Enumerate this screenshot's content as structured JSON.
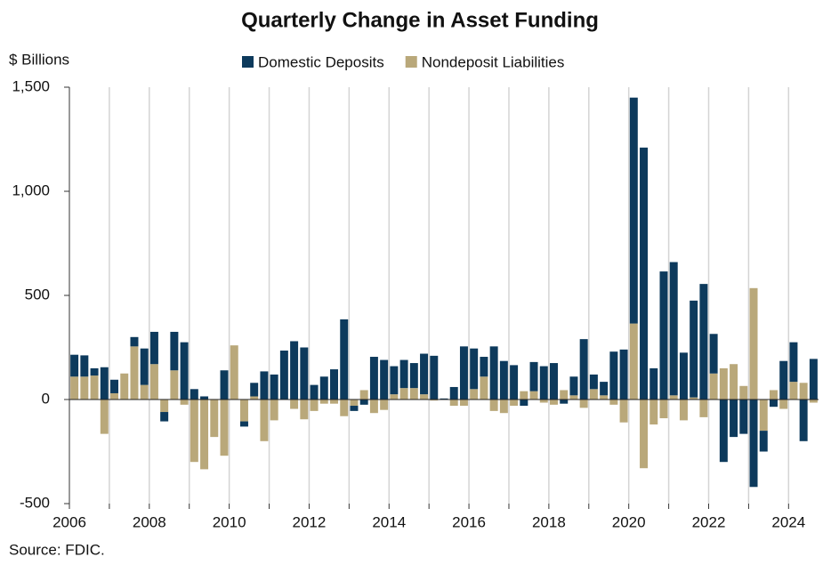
{
  "chart_data": {
    "type": "bar",
    "stacked": true,
    "title": "Quarterly Change in Asset Funding",
    "y_label": "$ Billions",
    "source": "Source: FDIC.",
    "categories": [
      "2006",
      null,
      null,
      null,
      null,
      null,
      null,
      null,
      "2008",
      null,
      null,
      null,
      null,
      null,
      null,
      null,
      "2010",
      null,
      null,
      null,
      null,
      null,
      null,
      null,
      "2012",
      null,
      null,
      null,
      null,
      null,
      null,
      null,
      "2014",
      null,
      null,
      null,
      null,
      null,
      null,
      null,
      "2016",
      null,
      null,
      null,
      null,
      null,
      null,
      null,
      "2018",
      null,
      null,
      null,
      null,
      null,
      null,
      null,
      "2020",
      null,
      null,
      null,
      null,
      null,
      null,
      null,
      "2022",
      null,
      null,
      null,
      null,
      null,
      null,
      null,
      "2024",
      null,
      null
    ],
    "series": [
      {
        "name": "Domestic Deposits",
        "color": "#0d3a5c",
        "values": [
          105,
          102,
          35,
          155,
          65,
          0,
          45,
          175,
          155,
          -45,
          185,
          275,
          50,
          15,
          0,
          140,
          0,
          -25,
          65,
          135,
          120,
          235,
          280,
          250,
          70,
          110,
          145,
          385,
          -25,
          -25,
          205,
          190,
          135,
          135,
          120,
          195,
          210,
          5,
          60,
          255,
          195,
          95,
          255,
          185,
          165,
          -30,
          140,
          160,
          175,
          -20,
          90,
          290,
          70,
          65,
          230,
          240,
          1085,
          1210,
          150,
          615,
          640,
          225,
          465,
          555,
          190,
          -300,
          -180,
          -165,
          -420,
          -100,
          -35,
          185,
          190,
          -200,
          195
        ]
      },
      {
        "name": "Nondeposit Liabilities",
        "color": "#b9a87a",
        "values": [
          110,
          110,
          115,
          -165,
          30,
          125,
          255,
          70,
          170,
          -60,
          140,
          -25,
          -300,
          -335,
          -180,
          -270,
          260,
          -105,
          15,
          -200,
          -100,
          0,
          -45,
          -95,
          -55,
          -20,
          -20,
          -80,
          -30,
          45,
          -65,
          -50,
          25,
          55,
          55,
          25,
          -5,
          0,
          -30,
          -30,
          50,
          110,
          -55,
          -65,
          -30,
          40,
          40,
          -15,
          -25,
          45,
          20,
          -40,
          50,
          20,
          -25,
          -110,
          365,
          -330,
          -120,
          -90,
          20,
          -100,
          10,
          -85,
          125,
          150,
          170,
          65,
          535,
          -150,
          45,
          -45,
          85,
          80,
          -15
        ]
      }
    ],
    "ylim": [
      -500,
      1500
    ],
    "yticks": [
      -500,
      0,
      500,
      {
        "value": 1000,
        "label": "1,000"
      },
      {
        "value": 1500,
        "label": "1,500"
      }
    ],
    "grid": true
  }
}
